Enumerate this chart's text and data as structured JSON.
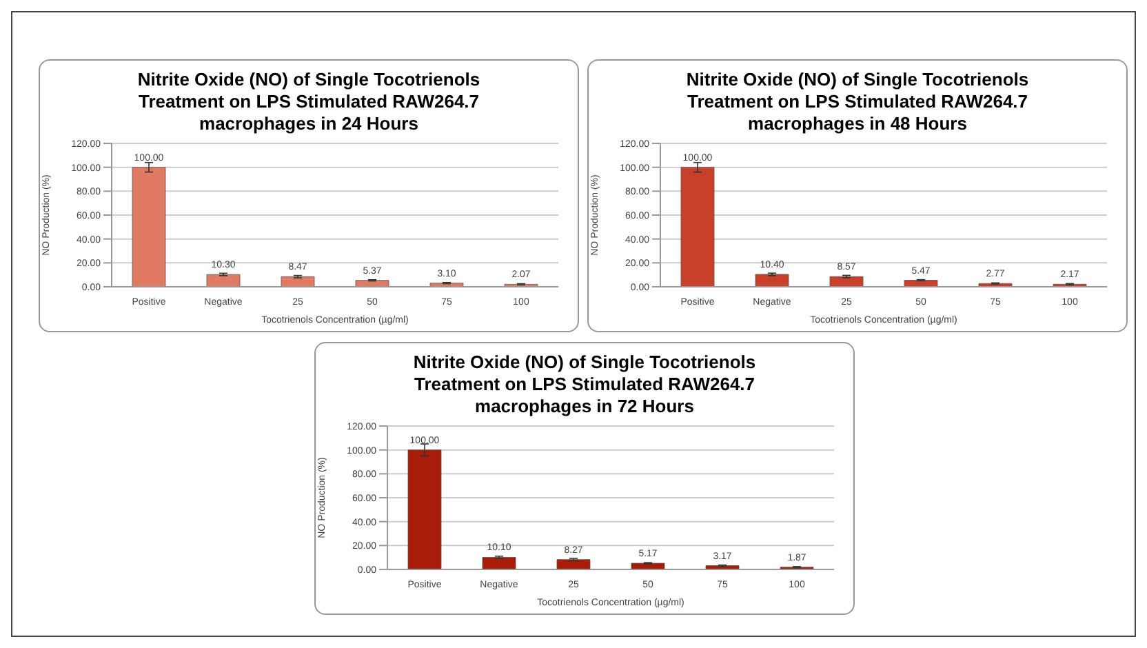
{
  "chart_data": [
    {
      "type": "bar",
      "title": "Nitrite Oxide (NO) of Single Tocotrienols Treatment on LPS Stimulated RAW264.7 macrophages in 24 Hours",
      "xlabel": "Tocotrienols Concentration (µg/ml)",
      "ylabel": "NO Production (%)",
      "categories": [
        "Positive",
        "Negative",
        "25",
        "50",
        "75",
        "100"
      ],
      "values": [
        100,
        10.3,
        8.47,
        5.37,
        3.1,
        2.07
      ],
      "value_labels": [
        "100.00",
        "10.30",
        "8.47",
        "5.37",
        "3.10",
        "2.07"
      ],
      "errors": [
        4,
        1,
        1,
        0.5,
        0.5,
        0.5
      ],
      "color": "#e07a62",
      "ylim": [
        0,
        120
      ],
      "yticks": [
        {
          "value": 0,
          "label": "0.00"
        },
        {
          "value": 20,
          "label": "20.00"
        },
        {
          "value": 40,
          "label": "40.00"
        },
        {
          "value": 60,
          "label": "60.00"
        },
        {
          "value": 80,
          "label": "80.00"
        },
        {
          "value": 100,
          "label": "100.00"
        },
        {
          "value": 120,
          "label": "120.00"
        }
      ],
      "grid": "y"
    },
    {
      "type": "bar",
      "title": "Nitrite Oxide (NO) of Single Tocotrienols Treatment on LPS Stimulated RAW264.7 macrophages in 48 Hours",
      "xlabel": "Tocotrienols Concentration (µg/ml)",
      "ylabel": "NO Production (%)",
      "categories": [
        "Positive",
        "Negative",
        "25",
        "50",
        "75",
        "100"
      ],
      "values": [
        100,
        10.4,
        8.57,
        5.47,
        2.77,
        2.17
      ],
      "value_labels": [
        "100.00",
        "10.40",
        "8.57",
        "5.47",
        "2.77",
        "2.17"
      ],
      "errors": [
        4,
        1,
        1,
        0.5,
        0.5,
        0.5
      ],
      "color": "#c9402a",
      "ylim": [
        0,
        120
      ],
      "yticks": [
        {
          "value": 0,
          "label": "0.00"
        },
        {
          "value": 20,
          "label": "20.00"
        },
        {
          "value": 40,
          "label": "40.00"
        },
        {
          "value": 60,
          "label": "60.00"
        },
        {
          "value": 80,
          "label": "80.00"
        },
        {
          "value": 100,
          "label": "100.00"
        },
        {
          "value": 120,
          "label": "120.00"
        }
      ],
      "grid": "y"
    },
    {
      "type": "bar",
      "title": "Nitrite Oxide (NO) of Single Tocotrienols Treatment on LPS Stimulated RAW264.7 macrophages in 72 Hours",
      "xlabel": "Tocotrienols Concentration (µg/ml)",
      "ylabel": "NO Production (%)",
      "categories": [
        "Positive",
        "Negative",
        "25",
        "50",
        "75",
        "100"
      ],
      "values": [
        100,
        10.1,
        8.27,
        5.17,
        3.17,
        1.87
      ],
      "value_labels": [
        "100.00",
        "10.10",
        "8.27",
        "5.17",
        "3.17",
        "1.87"
      ],
      "errors": [
        5,
        1,
        1,
        0.5,
        0.5,
        0.5
      ],
      "color": "#a81c0a",
      "ylim": [
        0,
        120
      ],
      "yticks": [
        {
          "value": 0,
          "label": "0.00"
        },
        {
          "value": 20,
          "label": "20.00"
        },
        {
          "value": 40,
          "label": "40.00"
        },
        {
          "value": 60,
          "label": "60.00"
        },
        {
          "value": 80,
          "label": "80.00"
        },
        {
          "value": 100,
          "label": "100.00"
        },
        {
          "value": 120,
          "label": "120.00"
        }
      ],
      "grid": "y"
    }
  ]
}
